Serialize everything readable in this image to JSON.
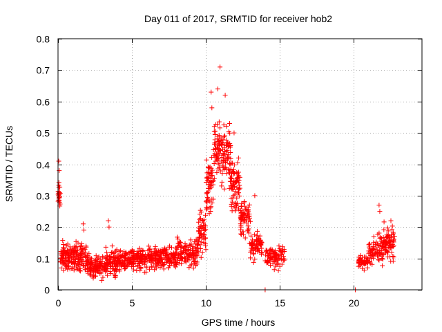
{
  "chart_data": {
    "type": "scatter",
    "title": "Day 011 of 2017, SRMTID for receiver hob2",
    "xlabel": "GPS time / hours",
    "ylabel": "SRMTID / TECUs",
    "xlim": [
      0,
      24.6
    ],
    "ylim": [
      0,
      0.8
    ],
    "x_ticks": [
      0,
      5,
      10,
      15,
      20
    ],
    "x_tick_labels": [
      "0",
      "5",
      "10",
      "15",
      "20"
    ],
    "y_ticks": [
      0,
      0.1,
      0.2,
      0.3,
      0.4,
      0.5,
      0.6,
      0.7,
      0.8
    ],
    "y_tick_labels": [
      "0",
      "0.1",
      "0.2",
      "0.3",
      "0.4",
      "0.5",
      "0.6",
      "0.7",
      "0.8"
    ],
    "grid": true,
    "marker": "plus",
    "series": [
      {
        "name": "SRMTID",
        "color": "#ff0000",
        "segments": [
          {
            "start": 0.0,
            "end": 0.15,
            "base": 0.28,
            "spread": 0.07,
            "count": 25
          },
          {
            "start": 0.15,
            "end": 1.0,
            "base": 0.09,
            "spread": 0.05,
            "count": 90
          },
          {
            "start": 1.0,
            "end": 2.0,
            "base": 0.08,
            "spread": 0.06,
            "count": 100
          },
          {
            "start": 2.0,
            "end": 3.2,
            "base": 0.06,
            "spread": 0.04,
            "count": 110
          },
          {
            "start": 3.2,
            "end": 4.0,
            "base": 0.07,
            "spread": 0.05,
            "count": 80
          },
          {
            "start": 4.0,
            "end": 6.0,
            "base": 0.08,
            "spread": 0.04,
            "count": 180
          },
          {
            "start": 6.0,
            "end": 8.0,
            "base": 0.09,
            "spread": 0.04,
            "count": 180
          },
          {
            "start": 8.0,
            "end": 9.5,
            "base": 0.1,
            "spread": 0.05,
            "count": 130
          },
          {
            "start": 9.5,
            "end": 10.0,
            "base": 0.16,
            "spread": 0.08,
            "count": 50
          },
          {
            "start": 10.0,
            "end": 10.5,
            "base": 0.3,
            "spread": 0.1,
            "count": 60
          },
          {
            "start": 10.5,
            "end": 11.0,
            "base": 0.4,
            "spread": 0.12,
            "count": 60
          },
          {
            "start": 11.0,
            "end": 11.7,
            "base": 0.37,
            "spread": 0.12,
            "count": 80
          },
          {
            "start": 11.7,
            "end": 12.3,
            "base": 0.3,
            "spread": 0.1,
            "count": 70
          },
          {
            "start": 12.3,
            "end": 13.0,
            "base": 0.2,
            "spread": 0.08,
            "count": 70
          },
          {
            "start": 13.0,
            "end": 13.8,
            "base": 0.12,
            "spread": 0.05,
            "count": 70
          },
          {
            "start": 14.0,
            "end": 15.3,
            "base": 0.09,
            "spread": 0.04,
            "count": 90
          },
          {
            "start": 20.3,
            "end": 21.0,
            "base": 0.08,
            "spread": 0.03,
            "count": 50
          },
          {
            "start": 21.0,
            "end": 22.0,
            "base": 0.11,
            "spread": 0.05,
            "count": 80
          },
          {
            "start": 22.0,
            "end": 22.8,
            "base": 0.13,
            "spread": 0.06,
            "count": 70
          }
        ],
        "notable_points": [
          {
            "x": 0.05,
            "y": 0.41
          },
          {
            "x": 0.08,
            "y": 0.38
          },
          {
            "x": 1.7,
            "y": 0.21
          },
          {
            "x": 1.75,
            "y": 0.19
          },
          {
            "x": 3.4,
            "y": 0.22
          },
          {
            "x": 3.45,
            "y": 0.2
          },
          {
            "x": 10.35,
            "y": 0.63
          },
          {
            "x": 10.4,
            "y": 0.58
          },
          {
            "x": 10.8,
            "y": 0.64
          },
          {
            "x": 10.95,
            "y": 0.71
          },
          {
            "x": 11.3,
            "y": 0.62
          },
          {
            "x": 11.6,
            "y": 0.53
          },
          {
            "x": 11.9,
            "y": 0.5
          },
          {
            "x": 12.2,
            "y": 0.42
          },
          {
            "x": 13.3,
            "y": 0.3
          },
          {
            "x": 21.7,
            "y": 0.27
          },
          {
            "x": 21.75,
            "y": 0.25
          },
          {
            "x": 22.5,
            "y": 0.22
          },
          {
            "x": 14.0,
            "y": 0.0
          },
          {
            "x": 20.1,
            "y": 0.0
          }
        ]
      }
    ]
  }
}
